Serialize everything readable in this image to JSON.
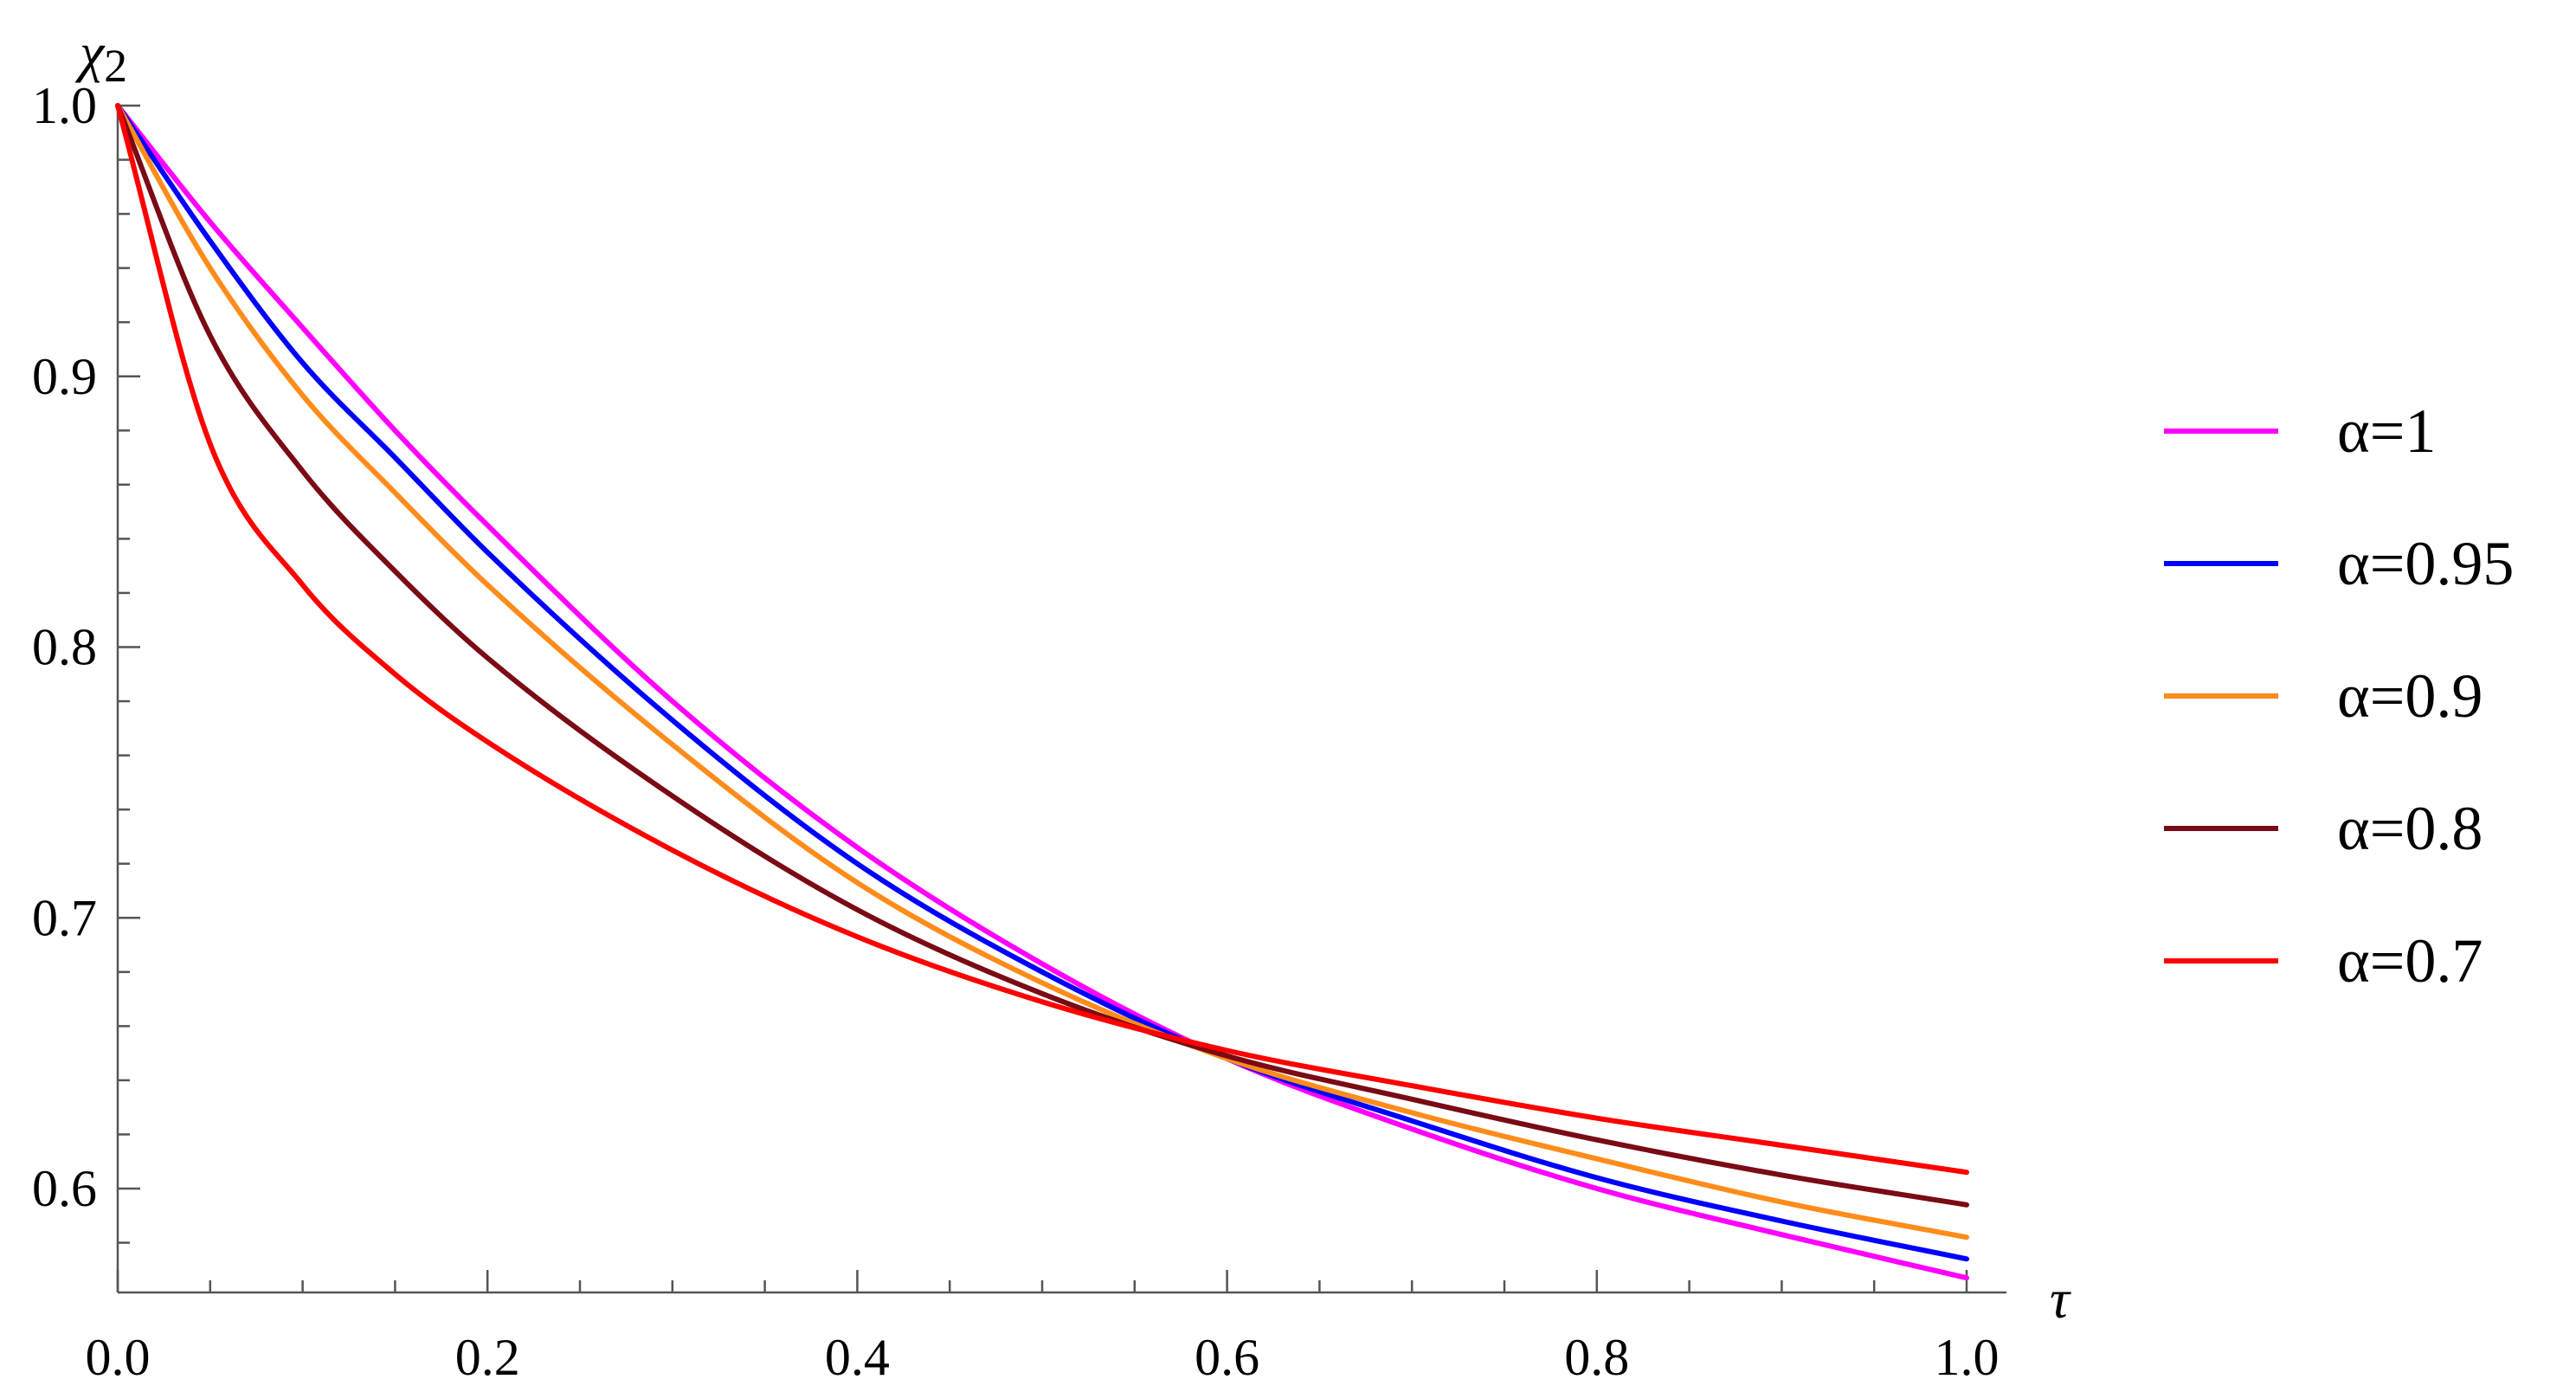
{
  "chart_data": {
    "type": "line",
    "title": "",
    "xlabel": "τ",
    "ylabel": "χ2",
    "xlim": [
      0.0,
      1.0
    ],
    "ylim": [
      0.56,
      1.01
    ],
    "xticks": [
      0.0,
      0.2,
      0.4,
      0.6,
      0.8,
      1.0
    ],
    "xtick_labels": [
      "0.0",
      "0.2",
      "0.4",
      "0.6",
      "0.8",
      "1.0"
    ],
    "yticks": [
      0.6,
      0.7,
      0.8,
      0.9,
      1.0
    ],
    "ytick_labels": [
      "0.6",
      "0.7",
      "0.8",
      "0.9",
      "1.0"
    ],
    "grid": false,
    "legend_position": "right",
    "x": [
      0.0,
      0.05,
      0.1,
      0.15,
      0.2,
      0.3,
      0.4,
      0.5,
      0.6,
      0.7,
      0.8,
      0.9,
      1.0
    ],
    "series": [
      {
        "name": "α=1",
        "color": "#ff00ff",
        "values": [
          1.0,
          0.957,
          0.918,
          0.88,
          0.845,
          0.78,
          0.726,
          0.683,
          0.648,
          0.622,
          0.6,
          0.583,
          0.567
        ]
      },
      {
        "name": "α=0.95",
        "color": "#0000ff",
        "values": [
          1.0,
          0.95,
          0.905,
          0.87,
          0.835,
          0.773,
          0.72,
          0.68,
          0.648,
          0.625,
          0.604,
          0.588,
          0.574
        ]
      },
      {
        "name": "α=0.9",
        "color": "#ff8c1a",
        "values": [
          1.0,
          0.94,
          0.893,
          0.857,
          0.823,
          0.764,
          0.713,
          0.676,
          0.648,
          0.628,
          0.611,
          0.595,
          0.582
        ]
      },
      {
        "name": "α=0.8",
        "color": "#7a0a14",
        "values": [
          1.0,
          0.915,
          0.865,
          0.828,
          0.796,
          0.745,
          0.703,
          0.672,
          0.649,
          0.633,
          0.618,
          0.605,
          0.594
        ]
      },
      {
        "name": "α=0.7",
        "color": "#ff0000",
        "values": [
          1.0,
          0.875,
          0.823,
          0.79,
          0.765,
          0.725,
          0.693,
          0.669,
          0.651,
          0.638,
          0.626,
          0.616,
          0.606
        ]
      }
    ]
  }
}
